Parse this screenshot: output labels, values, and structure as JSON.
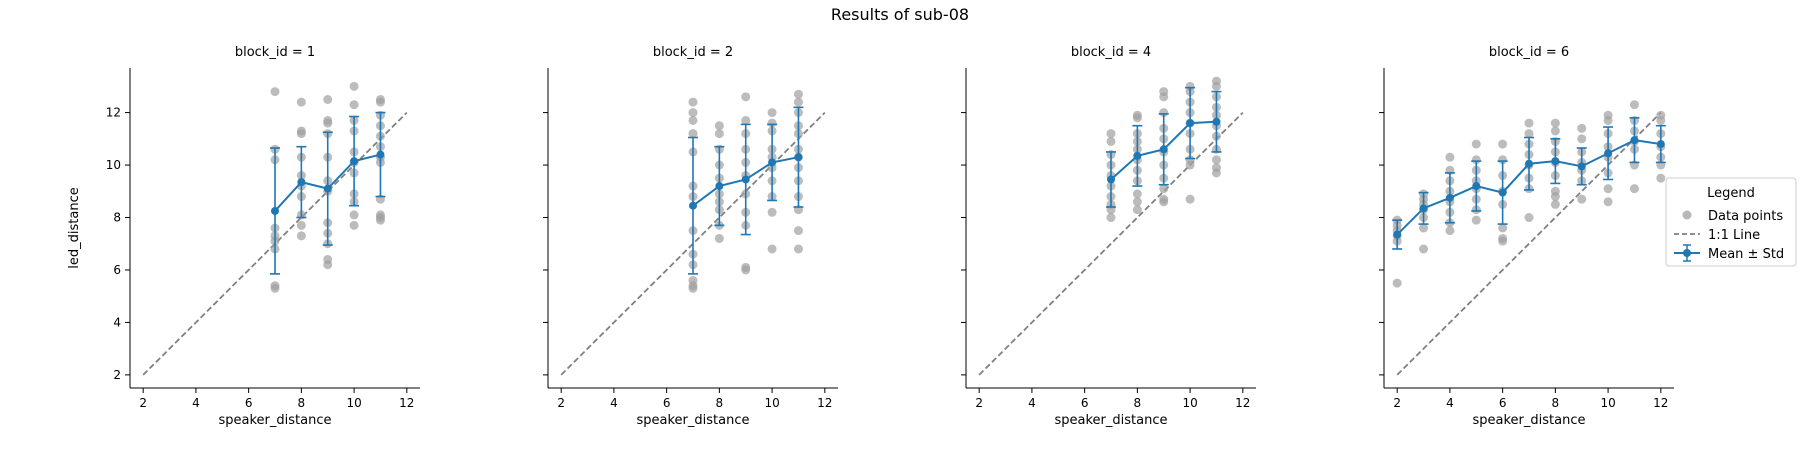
{
  "figure": {
    "title": "Results of sub-08"
  },
  "legend": {
    "title": "Legend",
    "placement": "center-right",
    "entries": [
      {
        "label": "Data points",
        "kind": "points",
        "color": "#a0a0a0"
      },
      {
        "label": "1:1 Line",
        "kind": "dashed-line",
        "color": "#808080"
      },
      {
        "label": "Mean ± Std",
        "kind": "errorbar-line",
        "color": "#1f77b4"
      }
    ]
  },
  "chart_data": [
    {
      "type": "scatter",
      "title": "block_id = 1",
      "xlabel": "speaker_distance",
      "ylabel": "led_distance",
      "xlim": [
        1.5,
        12.5
      ],
      "ylim": [
        1.5,
        13.7
      ],
      "xticks": [
        2,
        4,
        6,
        8,
        10,
        12
      ],
      "yticks": [
        2,
        4,
        6,
        8,
        10,
        12
      ],
      "points": [
        [
          7,
          12.8
        ],
        [
          7,
          10.6
        ],
        [
          7,
          10.2
        ],
        [
          7,
          7.6
        ],
        [
          7,
          7.3
        ],
        [
          7,
          7.1
        ],
        [
          7,
          6.8
        ],
        [
          7,
          5.4
        ],
        [
          7,
          5.3
        ],
        [
          8,
          12.4
        ],
        [
          8,
          11.3
        ],
        [
          8,
          11.2
        ],
        [
          8,
          10.3
        ],
        [
          8,
          9.6
        ],
        [
          8,
          9.2
        ],
        [
          8,
          8.8
        ],
        [
          8,
          8.1
        ],
        [
          8,
          7.7
        ],
        [
          8,
          7.3
        ],
        [
          9,
          12.5
        ],
        [
          9,
          11.7
        ],
        [
          9,
          11.6
        ],
        [
          9,
          11.2
        ],
        [
          9,
          10.3
        ],
        [
          9,
          9.4
        ],
        [
          9,
          9.0
        ],
        [
          9,
          7.8
        ],
        [
          9,
          7.4
        ],
        [
          9,
          7.0
        ],
        [
          9,
          6.4
        ],
        [
          9,
          6.2
        ],
        [
          10,
          13.0
        ],
        [
          10,
          12.3
        ],
        [
          10,
          11.7
        ],
        [
          10,
          11.3
        ],
        [
          10,
          10.5
        ],
        [
          10,
          10.1
        ],
        [
          10,
          9.7
        ],
        [
          10,
          8.9
        ],
        [
          10,
          8.6
        ],
        [
          10,
          8.1
        ],
        [
          10,
          7.7
        ],
        [
          11,
          12.5
        ],
        [
          11,
          12.4
        ],
        [
          11,
          11.9
        ],
        [
          11,
          11.5
        ],
        [
          11,
          11.1
        ],
        [
          11,
          10.7
        ],
        [
          11,
          10.3
        ],
        [
          11,
          10.1
        ],
        [
          11,
          8.7
        ],
        [
          11,
          8.1
        ],
        [
          11,
          8.0
        ],
        [
          11,
          7.9
        ]
      ],
      "means": {
        "x": [
          7,
          8,
          9,
          10,
          11
        ],
        "y": [
          8.25,
          9.35,
          9.1,
          10.15,
          10.4
        ],
        "std": [
          2.4,
          1.35,
          2.15,
          1.7,
          1.6
        ]
      },
      "identity_line": [
        2,
        12
      ]
    },
    {
      "type": "scatter",
      "title": "block_id = 2",
      "xlabel": "speaker_distance",
      "ylabel": "",
      "xlim": [
        1.5,
        12.5
      ],
      "ylim": [
        1.5,
        13.7
      ],
      "xticks": [
        2,
        4,
        6,
        8,
        10,
        12
      ],
      "yticks": [
        2,
        4,
        6,
        8,
        10,
        12
      ],
      "points": [
        [
          7,
          12.4
        ],
        [
          7,
          12.0
        ],
        [
          7,
          11.7
        ],
        [
          7,
          11.2
        ],
        [
          7,
          10.5
        ],
        [
          7,
          9.2
        ],
        [
          7,
          8.8
        ],
        [
          7,
          7.5
        ],
        [
          7,
          6.6
        ],
        [
          7,
          6.2
        ],
        [
          7,
          5.6
        ],
        [
          7,
          5.4
        ],
        [
          7,
          5.3
        ],
        [
          8,
          11.5
        ],
        [
          8,
          11.2
        ],
        [
          8,
          10.6
        ],
        [
          8,
          10.0
        ],
        [
          8,
          9.5
        ],
        [
          8,
          8.9
        ],
        [
          8,
          8.6
        ],
        [
          8,
          8.3
        ],
        [
          8,
          7.7
        ],
        [
          8,
          7.2
        ],
        [
          9,
          12.6
        ],
        [
          9,
          11.7
        ],
        [
          9,
          11.2
        ],
        [
          9,
          10.6
        ],
        [
          9,
          10.1
        ],
        [
          9,
          9.6
        ],
        [
          9,
          8.9
        ],
        [
          9,
          8.2
        ],
        [
          9,
          7.7
        ],
        [
          9,
          6.1
        ],
        [
          9,
          6.0
        ],
        [
          10,
          12.0
        ],
        [
          10,
          11.6
        ],
        [
          10,
          11.3
        ],
        [
          10,
          10.6
        ],
        [
          10,
          10.3
        ],
        [
          10,
          9.9
        ],
        [
          10,
          9.4
        ],
        [
          10,
          8.8
        ],
        [
          10,
          8.2
        ],
        [
          10,
          6.8
        ],
        [
          11,
          12.7
        ],
        [
          11,
          12.4
        ],
        [
          11,
          12.0
        ],
        [
          11,
          11.5
        ],
        [
          11,
          11.2
        ],
        [
          11,
          10.6
        ],
        [
          11,
          10.3
        ],
        [
          11,
          9.9
        ],
        [
          11,
          9.4
        ],
        [
          11,
          8.8
        ],
        [
          11,
          8.3
        ],
        [
          11,
          7.5
        ],
        [
          11,
          6.8
        ]
      ],
      "means": {
        "x": [
          7,
          8,
          9,
          10,
          11
        ],
        "y": [
          8.45,
          9.2,
          9.45,
          10.1,
          10.3
        ],
        "std": [
          2.6,
          1.5,
          2.1,
          1.45,
          1.9
        ]
      },
      "identity_line": [
        2,
        12
      ]
    },
    {
      "type": "scatter",
      "title": "block_id = 4",
      "xlabel": "speaker_distance",
      "ylabel": "",
      "xlim": [
        1.5,
        12.5
      ],
      "ylim": [
        1.5,
        13.7
      ],
      "xticks": [
        2,
        4,
        6,
        8,
        10,
        12
      ],
      "yticks": [
        2,
        4,
        6,
        8,
        10,
        12
      ],
      "points": [
        [
          7,
          11.2
        ],
        [
          7,
          10.9
        ],
        [
          7,
          10.4
        ],
        [
          7,
          10.0
        ],
        [
          7,
          9.6
        ],
        [
          7,
          9.2
        ],
        [
          7,
          8.8
        ],
        [
          7,
          8.5
        ],
        [
          7,
          8.3
        ],
        [
          7,
          8.0
        ],
        [
          8,
          11.9
        ],
        [
          8,
          11.8
        ],
        [
          8,
          11.2
        ],
        [
          8,
          10.9
        ],
        [
          8,
          10.6
        ],
        [
          8,
          10.2
        ],
        [
          8,
          9.8
        ],
        [
          8,
          9.4
        ],
        [
          8,
          8.9
        ],
        [
          8,
          8.6
        ],
        [
          8,
          8.3
        ],
        [
          9,
          12.8
        ],
        [
          9,
          12.6
        ],
        [
          9,
          12.0
        ],
        [
          9,
          11.4
        ],
        [
          9,
          11.0
        ],
        [
          9,
          10.5
        ],
        [
          9,
          10.0
        ],
        [
          9,
          9.5
        ],
        [
          9,
          9.1
        ],
        [
          9,
          8.7
        ],
        [
          9,
          8.6
        ],
        [
          10,
          13.0
        ],
        [
          10,
          12.8
        ],
        [
          10,
          12.4
        ],
        [
          10,
          12.0
        ],
        [
          10,
          11.6
        ],
        [
          10,
          11.2
        ],
        [
          10,
          10.6
        ],
        [
          10,
          10.2
        ],
        [
          10,
          10.0
        ],
        [
          10,
          8.7
        ],
        [
          11,
          13.2
        ],
        [
          11,
          13.0
        ],
        [
          11,
          12.6
        ],
        [
          11,
          12.2
        ],
        [
          11,
          11.9
        ],
        [
          11,
          11.5
        ],
        [
          11,
          11.1
        ],
        [
          11,
          10.6
        ],
        [
          11,
          10.2
        ],
        [
          11,
          9.9
        ],
        [
          11,
          9.7
        ]
      ],
      "means": {
        "x": [
          7,
          8,
          9,
          10,
          11
        ],
        "y": [
          9.45,
          10.35,
          10.6,
          11.6,
          11.65
        ],
        "std": [
          1.05,
          1.15,
          1.35,
          1.35,
          1.15
        ]
      },
      "identity_line": [
        2,
        12
      ]
    },
    {
      "type": "scatter",
      "title": "block_id = 6",
      "xlabel": "speaker_distance",
      "ylabel": "",
      "xlim": [
        1.5,
        12.5
      ],
      "ylim": [
        1.5,
        13.7
      ],
      "xticks": [
        2,
        4,
        6,
        8,
        10,
        12
      ],
      "yticks": [
        2,
        4,
        6,
        8,
        10,
        12
      ],
      "points": [
        [
          2,
          7.9
        ],
        [
          2,
          7.7
        ],
        [
          2,
          7.5
        ],
        [
          2,
          7.3
        ],
        [
          2,
          7.1
        ],
        [
          2,
          5.5
        ],
        [
          3,
          8.9
        ],
        [
          3,
          8.7
        ],
        [
          3,
          8.5
        ],
        [
          3,
          8.3
        ],
        [
          3,
          8.0
        ],
        [
          3,
          7.6
        ],
        [
          3,
          6.8
        ],
        [
          4,
          10.3
        ],
        [
          4,
          9.8
        ],
        [
          4,
          9.4
        ],
        [
          4,
          9.0
        ],
        [
          4,
          8.6
        ],
        [
          4,
          8.2
        ],
        [
          4,
          7.8
        ],
        [
          4,
          7.5
        ],
        [
          5,
          10.8
        ],
        [
          5,
          10.2
        ],
        [
          5,
          9.8
        ],
        [
          5,
          9.4
        ],
        [
          5,
          9.1
        ],
        [
          5,
          8.7
        ],
        [
          5,
          8.3
        ],
        [
          5,
          7.9
        ],
        [
          6,
          10.8
        ],
        [
          6,
          10.2
        ],
        [
          6,
          9.6
        ],
        [
          6,
          9.0
        ],
        [
          6,
          8.5
        ],
        [
          6,
          7.6
        ],
        [
          6,
          7.2
        ],
        [
          6,
          7.1
        ],
        [
          7,
          11.6
        ],
        [
          7,
          11.2
        ],
        [
          7,
          10.8
        ],
        [
          7,
          10.4
        ],
        [
          7,
          10.0
        ],
        [
          7,
          9.5
        ],
        [
          7,
          9.1
        ],
        [
          7,
          8.0
        ],
        [
          8,
          11.6
        ],
        [
          8,
          11.3
        ],
        [
          8,
          10.9
        ],
        [
          8,
          10.5
        ],
        [
          8,
          10.1
        ],
        [
          8,
          9.6
        ],
        [
          8,
          9.0
        ],
        [
          8,
          8.8
        ],
        [
          8,
          8.5
        ],
        [
          9,
          11.4
        ],
        [
          9,
          11.0
        ],
        [
          9,
          10.5
        ],
        [
          9,
          10.1
        ],
        [
          9,
          9.8
        ],
        [
          9,
          9.4
        ],
        [
          9,
          8.7
        ],
        [
          10,
          11.9
        ],
        [
          10,
          11.7
        ],
        [
          10,
          11.2
        ],
        [
          10,
          10.7
        ],
        [
          10,
          10.3
        ],
        [
          10,
          9.7
        ],
        [
          10,
          9.1
        ],
        [
          10,
          8.6
        ],
        [
          11,
          12.3
        ],
        [
          11,
          11.7
        ],
        [
          11,
          11.3
        ],
        [
          11,
          10.9
        ],
        [
          11,
          10.6
        ],
        [
          11,
          10.0
        ],
        [
          11,
          9.1
        ],
        [
          12,
          11.9
        ],
        [
          12,
          11.7
        ],
        [
          12,
          11.2
        ],
        [
          12,
          10.7
        ],
        [
          12,
          10.3
        ],
        [
          12,
          10.0
        ],
        [
          12,
          9.5
        ]
      ],
      "means": {
        "x": [
          2,
          3,
          4,
          5,
          6,
          7,
          8,
          9,
          10,
          11,
          12
        ],
        "y": [
          7.35,
          8.35,
          8.75,
          9.2,
          8.95,
          10.05,
          10.15,
          9.95,
          10.45,
          10.95,
          10.8
        ],
        "std": [
          0.55,
          0.6,
          0.95,
          0.95,
          1.2,
          1.0,
          0.85,
          0.7,
          1.0,
          0.85,
          0.7
        ]
      },
      "identity_line": [
        2,
        12
      ]
    }
  ]
}
